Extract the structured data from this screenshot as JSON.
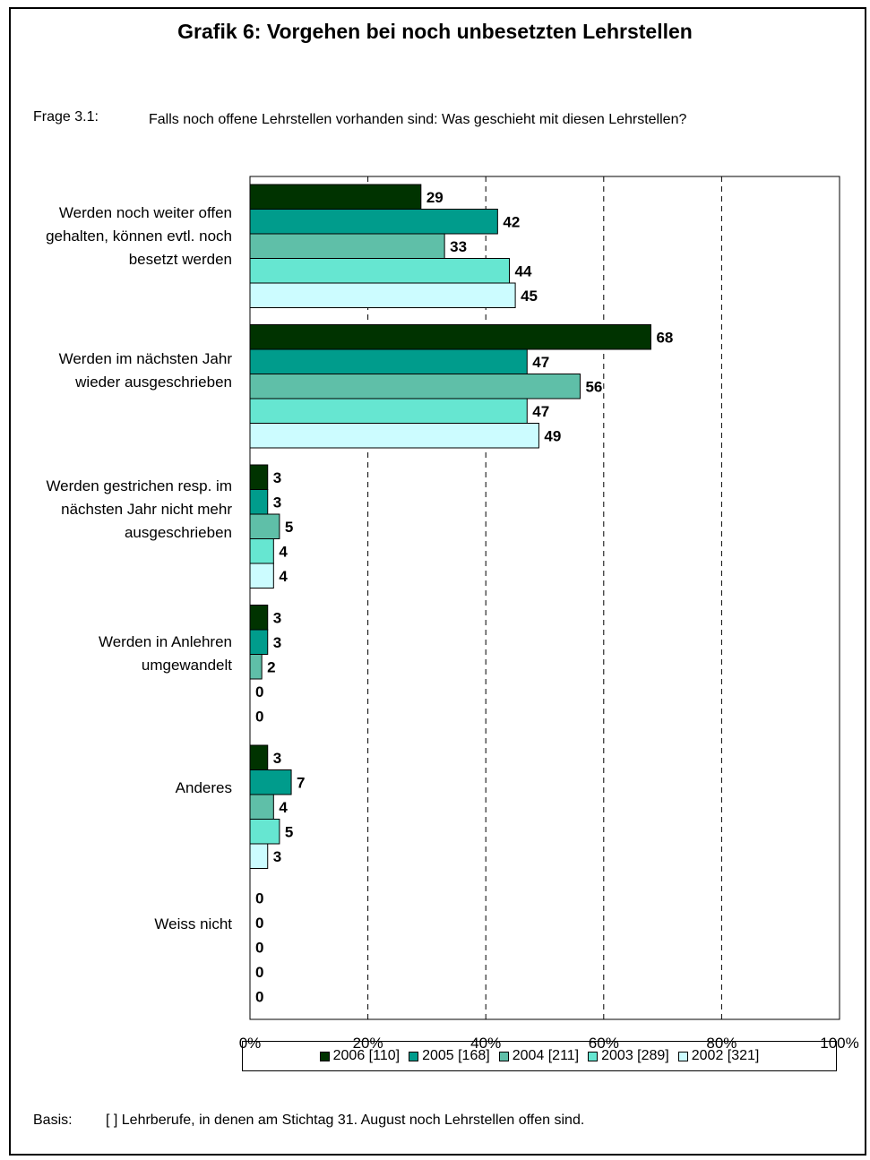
{
  "page": {
    "title": "Grafik 6: Vorgehen bei noch unbesetzten Lehrstellen",
    "question_label": "Frage 3.1:",
    "question_text": "Falls noch offene Lehrstellen vorhanden sind: Was geschieht mit diesen Lehrstellen?",
    "basis_label": "Basis:",
    "basis_text": "[ ] Lehrberufe, in denen am Stichtag 31. August noch Lehrstellen offen sind."
  },
  "chart_data": {
    "type": "bar",
    "orientation": "horizontal",
    "title": "Grafik 6: Vorgehen bei noch unbesetzten Lehrstellen",
    "categories": [
      "Werden noch weiter offen gehalten, können evtl. noch besetzt werden",
      "Werden im nächsten Jahr wieder ausgeschrieben",
      "Werden gestrichen resp. im nächsten Jahr nicht mehr ausgeschrieben",
      "Werden in Anlehren umgewandelt",
      "Anderes",
      "Weiss nicht"
    ],
    "series": [
      {
        "name": "2006 [110]",
        "color": "#003300",
        "values": [
          29,
          68,
          3,
          3,
          3,
          0
        ]
      },
      {
        "name": "2005 [168]",
        "color": "#009c8c",
        "values": [
          42,
          47,
          3,
          3,
          7,
          0
        ]
      },
      {
        "name": "2004 [211]",
        "color": "#5fbfa8",
        "values": [
          33,
          56,
          5,
          2,
          4,
          0
        ]
      },
      {
        "name": "2003 [289]",
        "color": "#66e6d1",
        "values": [
          44,
          47,
          4,
          0,
          5,
          0
        ]
      },
      {
        "name": "2002 [321]",
        "color": "#ccfcff",
        "values": [
          45,
          49,
          4,
          0,
          3,
          0
        ]
      }
    ],
    "x_ticks": [
      "0%",
      "20%",
      "40%",
      "60%",
      "80%",
      "100%"
    ],
    "xlim": [
      0,
      100
    ],
    "grid": "vertical dashed",
    "legend_position": "bottom"
  }
}
